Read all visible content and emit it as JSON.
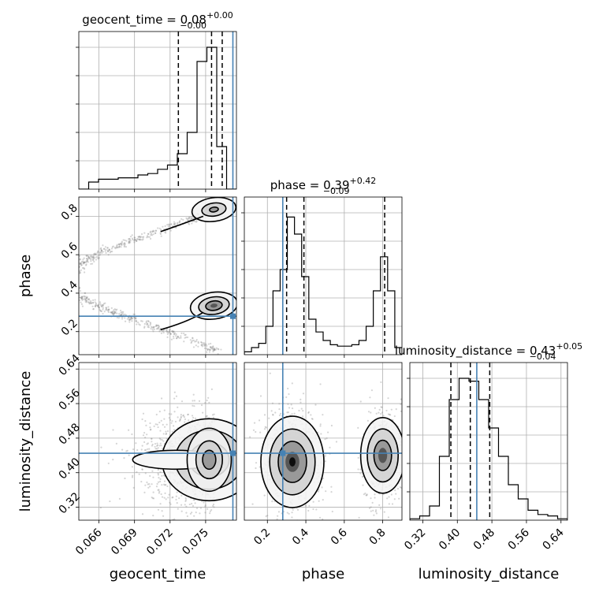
{
  "chart_data": {
    "type": "corner",
    "parameters": [
      {
        "name": "geocent_time",
        "axis_label": "geocent_time",
        "title_prefix": "geocent_time = 0.08",
        "title_plus": "+0.00",
        "title_minus": "−0.00",
        "range": [
          0.0643,
          0.0776
        ],
        "ticks": [
          0.066,
          0.069,
          0.072,
          0.075
        ],
        "tick_labels": [
          "0.066",
          "0.069",
          "0.072",
          "0.075"
        ],
        "quantiles": [
          0.0727,
          0.0755,
          0.0764
        ],
        "truth": 0.0773,
        "hist_bins": [
          0,
          0.05,
          0.07,
          0.07,
          0.08,
          0.08,
          0.1,
          0.11,
          0.14,
          0.17,
          0.25,
          0.4,
          0.9,
          1.0,
          0.3,
          0
        ]
      },
      {
        "name": "phase",
        "axis_label": "phase",
        "title_prefix": "phase = 0.39",
        "title_plus": "+0.42",
        "title_minus": "−0.09",
        "range": [
          0.08,
          0.9
        ],
        "ticks": [
          0.2,
          0.4,
          0.6,
          0.8
        ],
        "tick_labels": [
          "0.2",
          "0.4",
          "0.6",
          "0.8"
        ],
        "quantiles": [
          0.3,
          0.39,
          0.81
        ],
        "truth": 0.28,
        "hist_bins": [
          0.02,
          0.05,
          0.08,
          0.2,
          0.45,
          0.6,
          0.97,
          0.85,
          0.55,
          0.25,
          0.16,
          0.1,
          0.07,
          0.06,
          0.06,
          0.07,
          0.1,
          0.2,
          0.45,
          0.69,
          0.45,
          0.05
        ]
      },
      {
        "name": "luminosity_distance",
        "axis_label": "luminosity_distance",
        "title_prefix": "luminosity_distance = 0.43",
        "title_plus": "+0.05",
        "title_minus": "−0.04",
        "range": [
          0.29,
          0.655
        ],
        "ticks": [
          0.32,
          0.4,
          0.48,
          0.56,
          0.64
        ],
        "tick_labels": [
          "0.32",
          "0.40",
          "0.48",
          "0.56",
          "0.64"
        ],
        "quantiles": [
          0.385,
          0.43,
          0.475
        ],
        "truth": 0.445,
        "hist_bins": [
          0.01,
          0.03,
          0.1,
          0.45,
          0.85,
          1.0,
          0.98,
          0.85,
          0.65,
          0.45,
          0.25,
          0.15,
          0.07,
          0.04,
          0.03,
          0.01
        ]
      }
    ],
    "contours_2d": [
      {
        "x": "geocent_time",
        "y": "phase",
        "peaks": [
          {
            "x": 0.0757,
            "y": 0.32
          },
          {
            "x": 0.0757,
            "y": 0.84
          }
        ]
      },
      {
        "x": "geocent_time",
        "y": "luminosity_distance",
        "peaks": [
          {
            "x": 0.0755,
            "y": 0.43
          }
        ]
      },
      {
        "x": "phase",
        "y": "luminosity_distance",
        "peaks": [
          {
            "x": 0.33,
            "y": 0.42
          },
          {
            "x": 0.8,
            "y": 0.44
          }
        ]
      }
    ],
    "truth_color": "#4682b4",
    "line_color": "#000000",
    "grid": true
  }
}
